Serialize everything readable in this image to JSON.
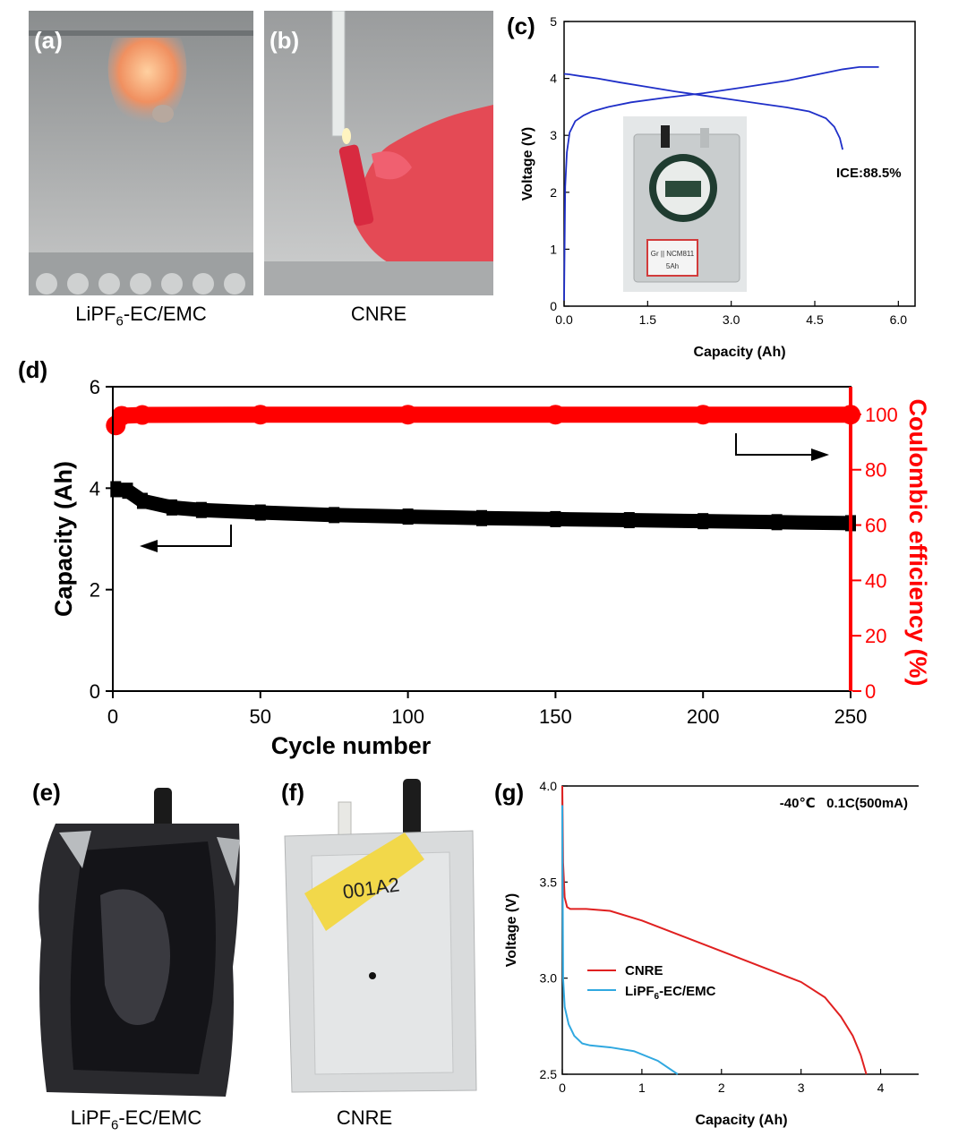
{
  "panels": {
    "a": {
      "label": "(a)"
    },
    "b": {
      "label": "(b)"
    },
    "c": {
      "label": "(c)"
    },
    "d": {
      "label": "(d)"
    },
    "e": {
      "label": "(e)"
    },
    "f": {
      "label": "(f)"
    },
    "g": {
      "label": "(g)"
    }
  },
  "captions": {
    "a": {
      "pre": "LiPF",
      "sub": "6",
      "post": "-EC/EMC"
    },
    "b": "CNRE",
    "e": {
      "pre": "LiPF",
      "sub": "6",
      "post": "-EC/EMC"
    },
    "f": "CNRE"
  },
  "photo_text": {
    "pouch_label_line1": "Gr || NCM811",
    "pouch_label_line2": "5Ah",
    "pouch_marker": "001A2"
  },
  "chart_data": [
    {
      "id": "c",
      "type": "line",
      "title": "",
      "xlabel": "Capacity (Ah)",
      "ylabel": "Voltage (V)",
      "xlim": [
        0,
        6.3
      ],
      "ylim": [
        0,
        5
      ],
      "xticks": [
        "0.0",
        "1.5",
        "3.0",
        "4.5",
        "6.0"
      ],
      "yticks": [
        "0",
        "1",
        "2",
        "3",
        "4",
        "5"
      ],
      "annotation": "ICE:88.5%",
      "series": [
        {
          "role": "charge",
          "color": "#1f2fc8",
          "x": [
            0,
            0.02,
            0.05,
            0.1,
            0.2,
            0.35,
            0.5,
            0.8,
            1.2,
            1.8,
            2.5,
            3.2,
            4.0,
            4.6,
            5.0,
            5.3,
            5.65
          ],
          "y": [
            0.1,
            2.1,
            2.7,
            3.05,
            3.25,
            3.35,
            3.42,
            3.5,
            3.58,
            3.66,
            3.74,
            3.84,
            3.96,
            4.08,
            4.16,
            4.2,
            4.2
          ]
        },
        {
          "role": "discharge",
          "color": "#1f2fc8",
          "x": [
            0,
            0.1,
            0.3,
            0.6,
            1.0,
            1.5,
            2.0,
            2.5,
            3.0,
            3.5,
            4.0,
            4.4,
            4.7,
            4.85,
            4.95,
            5.0
          ],
          "y": [
            4.08,
            4.07,
            4.04,
            4.0,
            3.93,
            3.85,
            3.77,
            3.7,
            3.63,
            3.56,
            3.49,
            3.42,
            3.3,
            3.15,
            2.95,
            2.75
          ]
        }
      ]
    },
    {
      "id": "d",
      "type": "scatter",
      "title": "",
      "xlabel": "Cycle number",
      "ylabel_left": "Capacity (Ah)",
      "ylabel_right": "Coulombic efficiency (%)",
      "xlim": [
        0,
        250
      ],
      "ylim_left": [
        0,
        6
      ],
      "ylim_right": [
        0,
        110
      ],
      "xticks": [
        "0",
        "50",
        "100",
        "150",
        "200",
        "250"
      ],
      "yticks_left": [
        "0",
        "2",
        "4",
        "6"
      ],
      "yticks_right": [
        "0",
        "20",
        "40",
        "60",
        "80",
        "100"
      ],
      "series": [
        {
          "name": "Capacity",
          "axis": "left",
          "color": "#000000",
          "x": [
            1,
            5,
            10,
            20,
            30,
            50,
            75,
            100,
            125,
            150,
            175,
            200,
            225,
            250
          ],
          "y": [
            3.98,
            3.95,
            3.75,
            3.62,
            3.57,
            3.52,
            3.47,
            3.44,
            3.41,
            3.39,
            3.37,
            3.35,
            3.33,
            3.31
          ]
        },
        {
          "name": "Coulombic efficiency",
          "axis": "right",
          "color": "#ff0000",
          "x": [
            1,
            3,
            10,
            50,
            100,
            150,
            200,
            250
          ],
          "y": [
            96,
            99.5,
            99.8,
            99.9,
            99.9,
            99.9,
            99.9,
            99.9
          ]
        }
      ]
    },
    {
      "id": "g",
      "type": "line",
      "title": "",
      "xlabel": "Capacity (Ah)",
      "ylabel": "Voltage (V)",
      "xlim": [
        0,
        4.5
      ],
      "ylim": [
        2.5,
        4.0
      ],
      "xticks": [
        "0",
        "1",
        "2",
        "3",
        "4"
      ],
      "yticks": [
        "2.5",
        "3.0",
        "3.5",
        "4.0"
      ],
      "condition": "-40℃   0.1C(500mA)",
      "series": [
        {
          "name": "CNRE",
          "color": "#e02020",
          "x": [
            0,
            0.01,
            0.03,
            0.06,
            0.1,
            0.3,
            0.6,
            1.0,
            1.5,
            2.0,
            2.5,
            3.0,
            3.3,
            3.5,
            3.65,
            3.75,
            3.82
          ],
          "y": [
            4.0,
            3.6,
            3.42,
            3.37,
            3.36,
            3.36,
            3.35,
            3.3,
            3.22,
            3.14,
            3.06,
            2.98,
            2.9,
            2.8,
            2.7,
            2.6,
            2.5
          ]
        },
        {
          "name_pre": "LiPF",
          "name_sub": "6",
          "name_post": "-EC/EMC",
          "color": "#30a8e0",
          "x": [
            0,
            0.01,
            0.03,
            0.08,
            0.15,
            0.25,
            0.35,
            0.6,
            0.9,
            1.2,
            1.45
          ],
          "y": [
            3.9,
            3.0,
            2.85,
            2.76,
            2.7,
            2.66,
            2.65,
            2.64,
            2.62,
            2.57,
            2.5
          ]
        }
      ]
    }
  ]
}
